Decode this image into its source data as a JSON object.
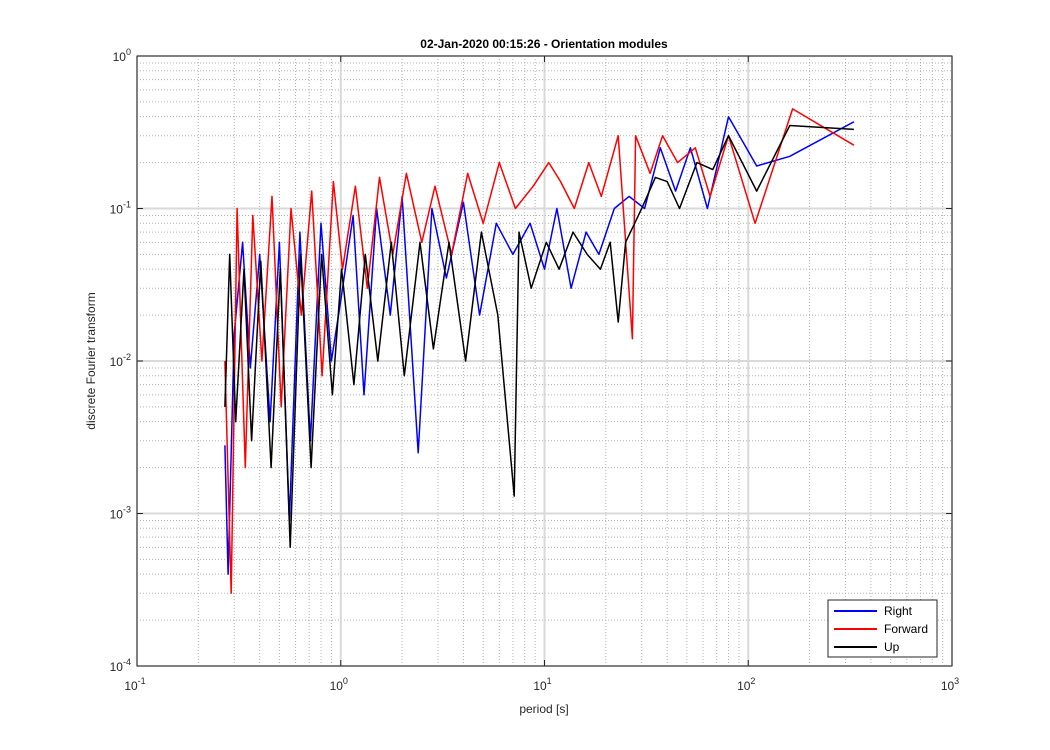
{
  "chart_data": {
    "type": "line",
    "title": "02-Jan-2020 00:15:26 - Orientation modules",
    "xlabel": "period [s]",
    "ylabel": "discrete Fourier transform",
    "xscale": "log",
    "yscale": "log",
    "xlim": [
      0.1,
      1000
    ],
    "ylim": [
      0.0001,
      1
    ],
    "grid": true,
    "minor_grid": true,
    "legend_position": "bottom-right",
    "x_ticks": [
      {
        "base": "10",
        "exp": "-1"
      },
      {
        "base": "10",
        "exp": "0"
      },
      {
        "base": "10",
        "exp": "1"
      },
      {
        "base": "10",
        "exp": "2"
      },
      {
        "base": "10",
        "exp": "3"
      }
    ],
    "y_ticks": [
      {
        "base": "10",
        "exp": "-4"
      },
      {
        "base": "10",
        "exp": "-3"
      },
      {
        "base": "10",
        "exp": "-2"
      },
      {
        "base": "10",
        "exp": "-1"
      },
      {
        "base": "10",
        "exp": "0"
      }
    ],
    "series": [
      {
        "name": "Right",
        "color": "#0000ff",
        "x": [
          0.27,
          0.28,
          0.3,
          0.33,
          0.36,
          0.4,
          0.45,
          0.5,
          0.56,
          0.63,
          0.71,
          0.8,
          0.9,
          1.0,
          1.15,
          1.3,
          1.5,
          1.75,
          2.0,
          2.4,
          2.8,
          3.3,
          4.0,
          4.8,
          5.8,
          7.0,
          8.5,
          10.0,
          11.5,
          13.5,
          16.0,
          18.5,
          22.0,
          26.0,
          31.0,
          37.0,
          44.0,
          52.0,
          63.0,
          80.0,
          110.0,
          160.0,
          330.0
        ],
        "y": [
          0.0028,
          0.0004,
          0.015,
          0.06,
          0.009,
          0.05,
          0.004,
          0.06,
          0.0009,
          0.07,
          0.003,
          0.08,
          0.01,
          0.025,
          0.09,
          0.006,
          0.1,
          0.02,
          0.12,
          0.0025,
          0.1,
          0.035,
          0.11,
          0.02,
          0.08,
          0.05,
          0.08,
          0.04,
          0.1,
          0.03,
          0.07,
          0.05,
          0.1,
          0.12,
          0.1,
          0.25,
          0.13,
          0.25,
          0.1,
          0.4,
          0.19,
          0.22,
          0.37
        ]
      },
      {
        "name": "Forward",
        "color": "#ff0000",
        "x": [
          0.27,
          0.29,
          0.31,
          0.34,
          0.37,
          0.41,
          0.46,
          0.51,
          0.57,
          0.64,
          0.72,
          0.81,
          0.92,
          1.02,
          1.18,
          1.35,
          1.55,
          1.8,
          2.1,
          2.5,
          2.9,
          3.5,
          4.2,
          5.0,
          6.0,
          7.2,
          8.8,
          10.5,
          12.0,
          14.0,
          16.5,
          19.0,
          23.0,
          27.0,
          28.0,
          33.0,
          38.0,
          45.0,
          55.0,
          65.0,
          80.0,
          108.0,
          165.0,
          330.0
        ],
        "y": [
          0.01,
          0.0003,
          0.1,
          0.002,
          0.09,
          0.01,
          0.12,
          0.005,
          0.1,
          0.02,
          0.13,
          0.008,
          0.15,
          0.04,
          0.14,
          0.03,
          0.16,
          0.05,
          0.17,
          0.06,
          0.14,
          0.05,
          0.17,
          0.08,
          0.2,
          0.1,
          0.14,
          0.2,
          0.15,
          0.1,
          0.2,
          0.12,
          0.3,
          0.014,
          0.3,
          0.17,
          0.3,
          0.2,
          0.25,
          0.12,
          0.3,
          0.08,
          0.45,
          0.26
        ]
      },
      {
        "name": "Up",
        "color": "#000000",
        "x": [
          0.27,
          0.285,
          0.305,
          0.335,
          0.365,
          0.405,
          0.455,
          0.505,
          0.565,
          0.635,
          0.715,
          0.805,
          0.91,
          1.01,
          1.16,
          1.32,
          1.52,
          1.77,
          2.05,
          2.45,
          2.85,
          3.4,
          4.1,
          4.9,
          5.9,
          7.1,
          7.5,
          8.6,
          10.2,
          11.8,
          13.8,
          16.2,
          18.8,
          21.0,
          23.0,
          25.0,
          30.0,
          35.0,
          40.0,
          46.0,
          56.0,
          67.0,
          80.0,
          110.0,
          160.0,
          330.0
        ],
        "y": [
          0.005,
          0.05,
          0.004,
          0.04,
          0.003,
          0.045,
          0.002,
          0.04,
          0.0006,
          0.05,
          0.002,
          0.05,
          0.006,
          0.04,
          0.007,
          0.05,
          0.01,
          0.06,
          0.008,
          0.06,
          0.012,
          0.06,
          0.01,
          0.07,
          0.02,
          0.0013,
          0.07,
          0.03,
          0.06,
          0.04,
          0.07,
          0.05,
          0.04,
          0.06,
          0.018,
          0.06,
          0.1,
          0.16,
          0.15,
          0.1,
          0.2,
          0.18,
          0.3,
          0.13,
          0.35,
          0.33
        ]
      }
    ],
    "legend": [
      {
        "label": "Right",
        "color": "#0000ff"
      },
      {
        "label": "Forward",
        "color": "#ff0000"
      },
      {
        "label": "Up",
        "color": "#000000"
      }
    ]
  }
}
